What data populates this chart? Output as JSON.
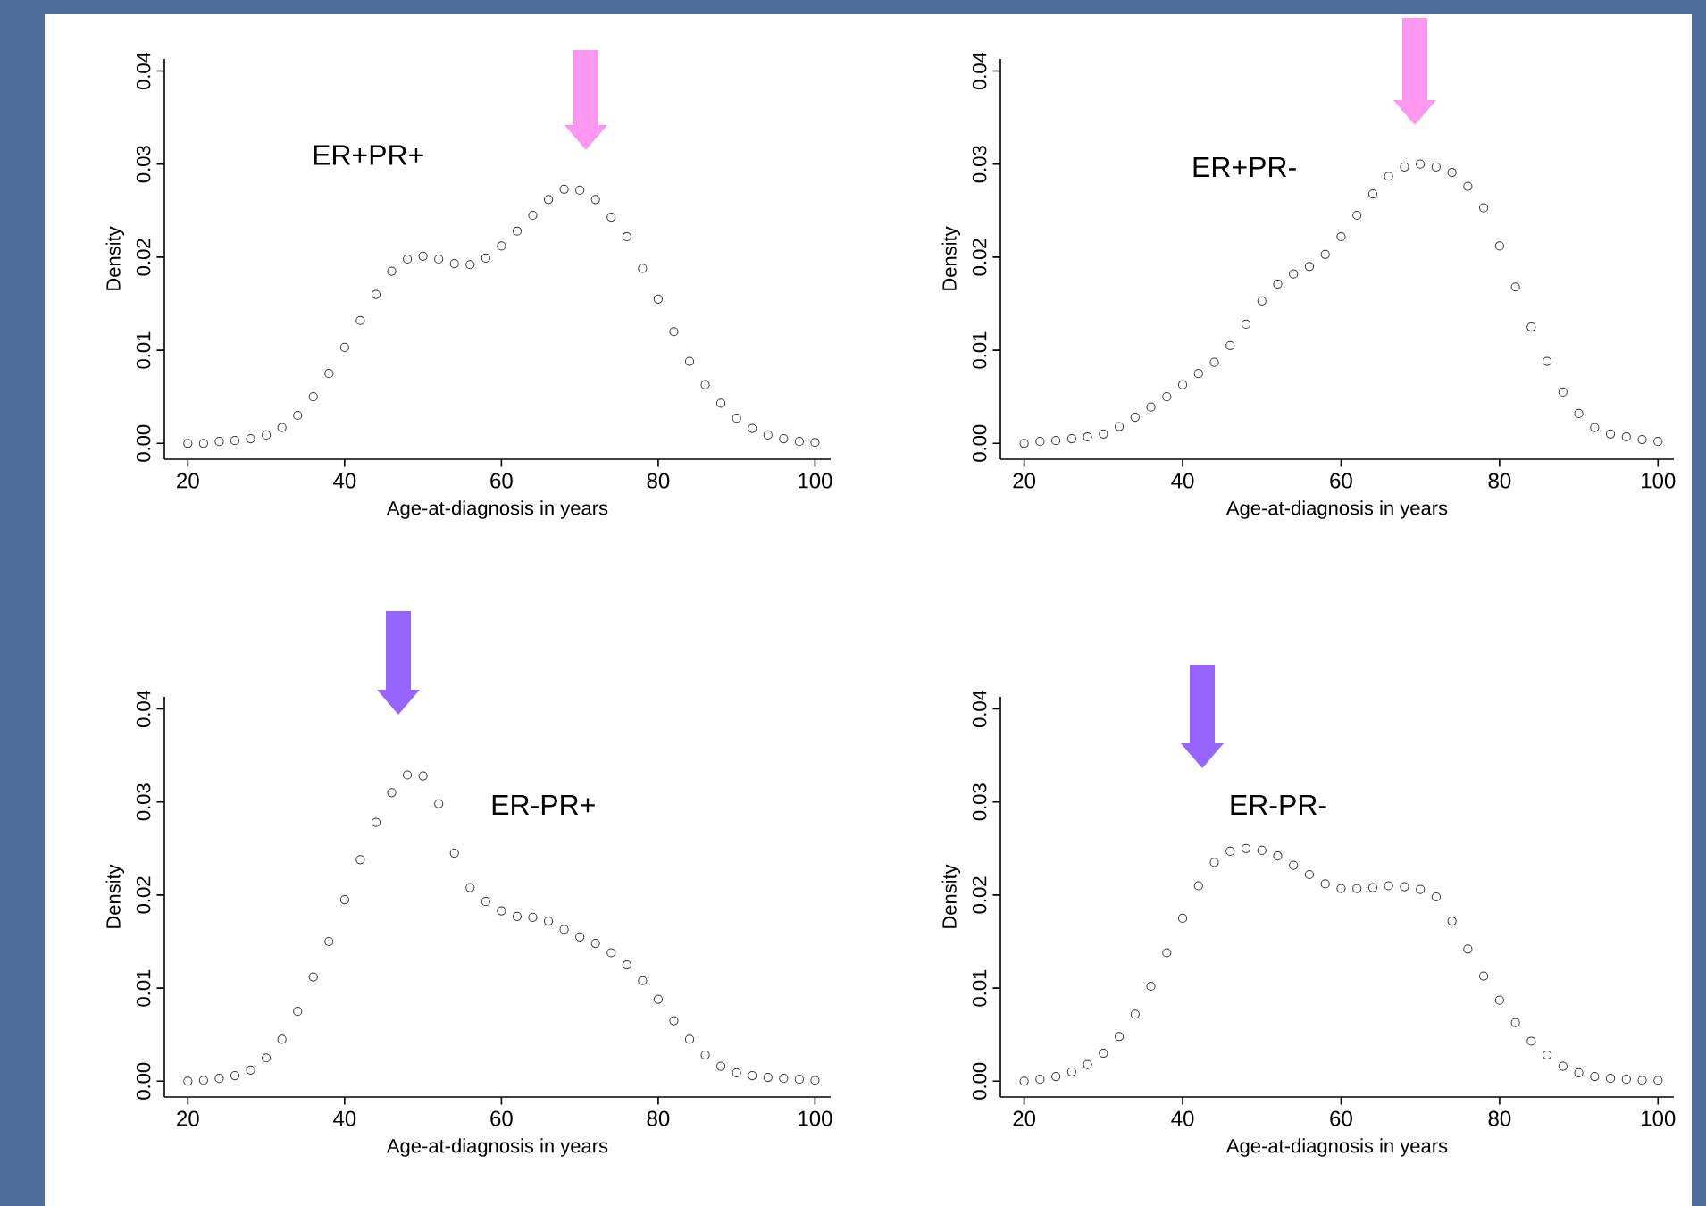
{
  "chart_data": [
    {
      "type": "scatter",
      "xlabel": "Age-at-diagnosis in years",
      "ylabel": "Density",
      "marker": "circle",
      "grid": false,
      "xlim": [
        17,
        102
      ],
      "ylim": [
        -0.0017,
        0.0413
      ],
      "xticks": [
        20,
        40,
        60,
        80,
        100
      ],
      "yticks": [
        {
          "value": 0,
          "label": "0.00"
        },
        {
          "value": 0.01,
          "label": "0.01"
        },
        {
          "value": 0.02,
          "label": "0.02"
        },
        {
          "value": 0.03,
          "label": "0.03"
        },
        {
          "value": 0.04,
          "label": "0.04"
        }
      ],
      "x": [
        20,
        22,
        24,
        26,
        28,
        30,
        32,
        34,
        36,
        38,
        40,
        42,
        44,
        46,
        48,
        50,
        52,
        54,
        56,
        58,
        60,
        62,
        64,
        66,
        68,
        70,
        72,
        74,
        76,
        78,
        80,
        82,
        84,
        86,
        88,
        90,
        92,
        94,
        96,
        98,
        100
      ],
      "series": [
        {
          "name": "ER+PR+",
          "color": "#333333",
          "values": [
            0,
            0,
            0.0002,
            0.0003,
            0.0005,
            0.0009,
            0.0017,
            0.003,
            0.005,
            0.0075,
            0.0103,
            0.0132,
            0.016,
            0.0185,
            0.0198,
            0.0201,
            0.0198,
            0.0193,
            0.0192,
            0.0199,
            0.0212,
            0.0228,
            0.0245,
            0.0262,
            0.0273,
            0.0272,
            0.0262,
            0.0243,
            0.0222,
            0.0188,
            0.0155,
            0.012,
            0.0088,
            0.0063,
            0.0043,
            0.0027,
            0.0016,
            0.0009,
            0.0005,
            0.0002,
            0.0001
          ]
        }
      ]
    },
    {
      "type": "scatter",
      "xlabel": "Age-at-diagnosis in years",
      "ylabel": "Density",
      "marker": "circle",
      "grid": false,
      "xlim": [
        17,
        102
      ],
      "ylim": [
        -0.0017,
        0.0413
      ],
      "xticks": [
        20,
        40,
        60,
        80,
        100
      ],
      "yticks": [
        {
          "value": 0,
          "label": "0.00"
        },
        {
          "value": 0.01,
          "label": "0.01"
        },
        {
          "value": 0.02,
          "label": "0.02"
        },
        {
          "value": 0.03,
          "label": "0.03"
        },
        {
          "value": 0.04,
          "label": "0.04"
        }
      ],
      "x": [
        20,
        22,
        24,
        26,
        28,
        30,
        32,
        34,
        36,
        38,
        40,
        42,
        44,
        46,
        48,
        50,
        52,
        54,
        56,
        58,
        60,
        62,
        64,
        66,
        68,
        70,
        72,
        74,
        76,
        78,
        80,
        82,
        84,
        86,
        88,
        90,
        92,
        94,
        96,
        98,
        100
      ],
      "series": [
        {
          "name": "ER+PR-",
          "color": "#333333",
          "values": [
            0,
            0.0002,
            0.0003,
            0.0005,
            0.0007,
            0.001,
            0.0018,
            0.0028,
            0.0039,
            0.005,
            0.0063,
            0.0075,
            0.0087,
            0.0105,
            0.0128,
            0.0153,
            0.0171,
            0.0182,
            0.019,
            0.0203,
            0.0222,
            0.0245,
            0.0268,
            0.0287,
            0.0297,
            0.03,
            0.0297,
            0.0291,
            0.0276,
            0.0253,
            0.0212,
            0.0168,
            0.0125,
            0.0088,
            0.0055,
            0.0032,
            0.0017,
            0.001,
            0.0007,
            0.0004,
            0.0002
          ]
        }
      ]
    },
    {
      "type": "scatter",
      "xlabel": "Age-at-diagnosis in years",
      "ylabel": "Density",
      "marker": "circle",
      "grid": false,
      "xlim": [
        17,
        102
      ],
      "ylim": [
        -0.0017,
        0.0413
      ],
      "xticks": [
        20,
        40,
        60,
        80,
        100
      ],
      "yticks": [
        {
          "value": 0,
          "label": "0.00"
        },
        {
          "value": 0.01,
          "label": "0.01"
        },
        {
          "value": 0.02,
          "label": "0.02"
        },
        {
          "value": 0.03,
          "label": "0.03"
        },
        {
          "value": 0.04,
          "label": "0.04"
        }
      ],
      "x": [
        20,
        22,
        24,
        26,
        28,
        30,
        32,
        34,
        36,
        38,
        40,
        42,
        44,
        46,
        48,
        50,
        52,
        54,
        56,
        58,
        60,
        62,
        64,
        66,
        68,
        70,
        72,
        74,
        76,
        78,
        80,
        82,
        84,
        86,
        88,
        90,
        92,
        94,
        96,
        98,
        100
      ],
      "series": [
        {
          "name": "ER-PR+",
          "color": "#333333",
          "values": [
            0,
            0.0001,
            0.0003,
            0.0006,
            0.0012,
            0.0025,
            0.0045,
            0.0075,
            0.0112,
            0.015,
            0.0195,
            0.0238,
            0.0278,
            0.031,
            0.0329,
            0.0328,
            0.0298,
            0.0245,
            0.0208,
            0.0193,
            0.0183,
            0.0177,
            0.0176,
            0.0172,
            0.0163,
            0.0155,
            0.0148,
            0.0138,
            0.0125,
            0.0108,
            0.0088,
            0.0065,
            0.0045,
            0.0028,
            0.0016,
            0.0009,
            0.0006,
            0.0004,
            0.0003,
            0.0002,
            0.0001
          ]
        }
      ]
    },
    {
      "type": "scatter",
      "xlabel": "Age-at-diagnosis in years",
      "ylabel": "Density",
      "marker": "circle",
      "grid": false,
      "xlim": [
        17,
        102
      ],
      "ylim": [
        -0.0017,
        0.0413
      ],
      "xticks": [
        20,
        40,
        60,
        80,
        100
      ],
      "yticks": [
        {
          "value": 0,
          "label": "0.00"
        },
        {
          "value": 0.01,
          "label": "0.01"
        },
        {
          "value": 0.02,
          "label": "0.02"
        },
        {
          "value": 0.03,
          "label": "0.03"
        },
        {
          "value": 0.04,
          "label": "0.04"
        }
      ],
      "x": [
        20,
        22,
        24,
        26,
        28,
        30,
        32,
        34,
        36,
        38,
        40,
        42,
        44,
        46,
        48,
        50,
        52,
        54,
        56,
        58,
        60,
        62,
        64,
        66,
        68,
        70,
        72,
        74,
        76,
        78,
        80,
        82,
        84,
        86,
        88,
        90,
        92,
        94,
        96,
        98,
        100
      ],
      "series": [
        {
          "name": "ER-PR-",
          "color": "#333333",
          "values": [
            0,
            0.0002,
            0.0005,
            0.001,
            0.0018,
            0.003,
            0.0048,
            0.0072,
            0.0102,
            0.0138,
            0.0175,
            0.021,
            0.0235,
            0.0247,
            0.025,
            0.0248,
            0.0242,
            0.0232,
            0.0222,
            0.0212,
            0.0207,
            0.0207,
            0.0208,
            0.021,
            0.0209,
            0.0206,
            0.0198,
            0.0172,
            0.0142,
            0.0113,
            0.0087,
            0.0063,
            0.0043,
            0.0028,
            0.0016,
            0.0009,
            0.0005,
            0.0003,
            0.0002,
            0.0001,
            0.0001
          ]
        }
      ]
    }
  ]
}
